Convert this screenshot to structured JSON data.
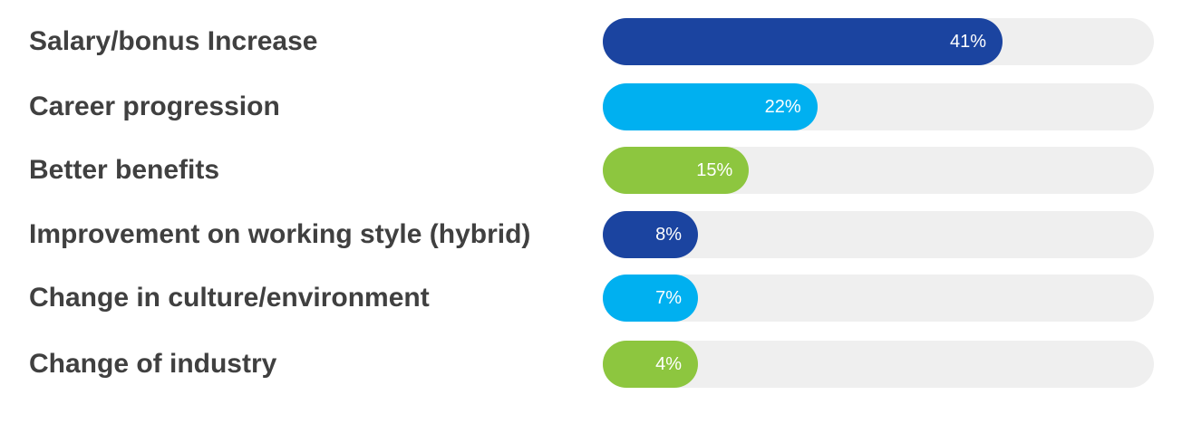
{
  "chart_data": {
    "type": "bar",
    "orientation": "horizontal",
    "categories": [
      "Salary/bonus Increase",
      "Career progression",
      "Better benefits",
      "Improvement on working style (hybrid)",
      "Change in culture/environment",
      "Change of industry"
    ],
    "values": [
      41,
      22,
      15,
      8,
      7,
      4
    ],
    "value_labels": [
      "41%",
      "22%",
      "15%",
      "8%",
      "7%",
      "4%"
    ],
    "colors": [
      "#1b44a0",
      "#00b0f0",
      "#8dc63f",
      "#1b44a0",
      "#00b0f0",
      "#8dc63f"
    ],
    "track_color": "#efefef",
    "title": "",
    "xlabel": "",
    "ylabel": "",
    "xlim": [
      0,
      100
    ],
    "grid": false,
    "legend": "none"
  }
}
